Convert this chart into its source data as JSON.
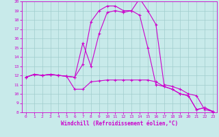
{
  "xlabel": "Windchill (Refroidissement éolien,°C)",
  "bg_color": "#c8eaea",
  "grid_color": "#a0cccc",
  "line_color": "#cc00cc",
  "xmin": -0.5,
  "xmax": 23.5,
  "ymin": 8,
  "ymax": 20,
  "yticks": [
    8,
    9,
    10,
    11,
    12,
    13,
    14,
    15,
    16,
    17,
    18,
    19,
    20
  ],
  "xticks": [
    0,
    1,
    2,
    3,
    4,
    5,
    6,
    7,
    8,
    9,
    10,
    11,
    12,
    13,
    14,
    15,
    16,
    17,
    18,
    19,
    20,
    21,
    22,
    23
  ],
  "series": [
    {
      "x": [
        0,
        1,
        2,
        3,
        4,
        5,
        6,
        7,
        8,
        9,
        10,
        11,
        12,
        13,
        14,
        15,
        16,
        17,
        18,
        19,
        20,
        21,
        22,
        23
      ],
      "y": [
        11.8,
        12.1,
        12.0,
        12.1,
        12.0,
        11.9,
        10.5,
        10.5,
        11.3,
        11.4,
        11.5,
        11.5,
        11.5,
        11.5,
        11.5,
        11.5,
        11.3,
        10.8,
        10.5,
        10.0,
        9.8,
        8.3,
        8.5,
        8.1
      ]
    },
    {
      "x": [
        0,
        1,
        2,
        3,
        4,
        5,
        6,
        7,
        8,
        9,
        10,
        11,
        12,
        13,
        14,
        15,
        16,
        17,
        18,
        19,
        20,
        21,
        22,
        23
      ],
      "y": [
        11.8,
        12.1,
        12.0,
        12.1,
        12.0,
        11.9,
        11.8,
        13.2,
        17.8,
        19.0,
        19.5,
        19.5,
        19.0,
        19.0,
        20.3,
        19.0,
        17.5,
        11.0,
        10.8,
        10.5,
        10.0,
        9.8,
        8.3,
        8.1
      ]
    },
    {
      "x": [
        0,
        1,
        2,
        3,
        4,
        5,
        6,
        7,
        8,
        9,
        10,
        11,
        12,
        13,
        14,
        15,
        16,
        17,
        18,
        19,
        20,
        21,
        22,
        23
      ],
      "y": [
        11.8,
        12.1,
        12.0,
        12.1,
        12.0,
        11.9,
        11.8,
        15.5,
        13.0,
        16.5,
        18.8,
        19.0,
        18.8,
        19.0,
        18.5,
        15.0,
        11.0,
        10.8,
        10.5,
        10.0,
        9.8,
        8.3,
        8.5,
        8.1
      ]
    }
  ]
}
